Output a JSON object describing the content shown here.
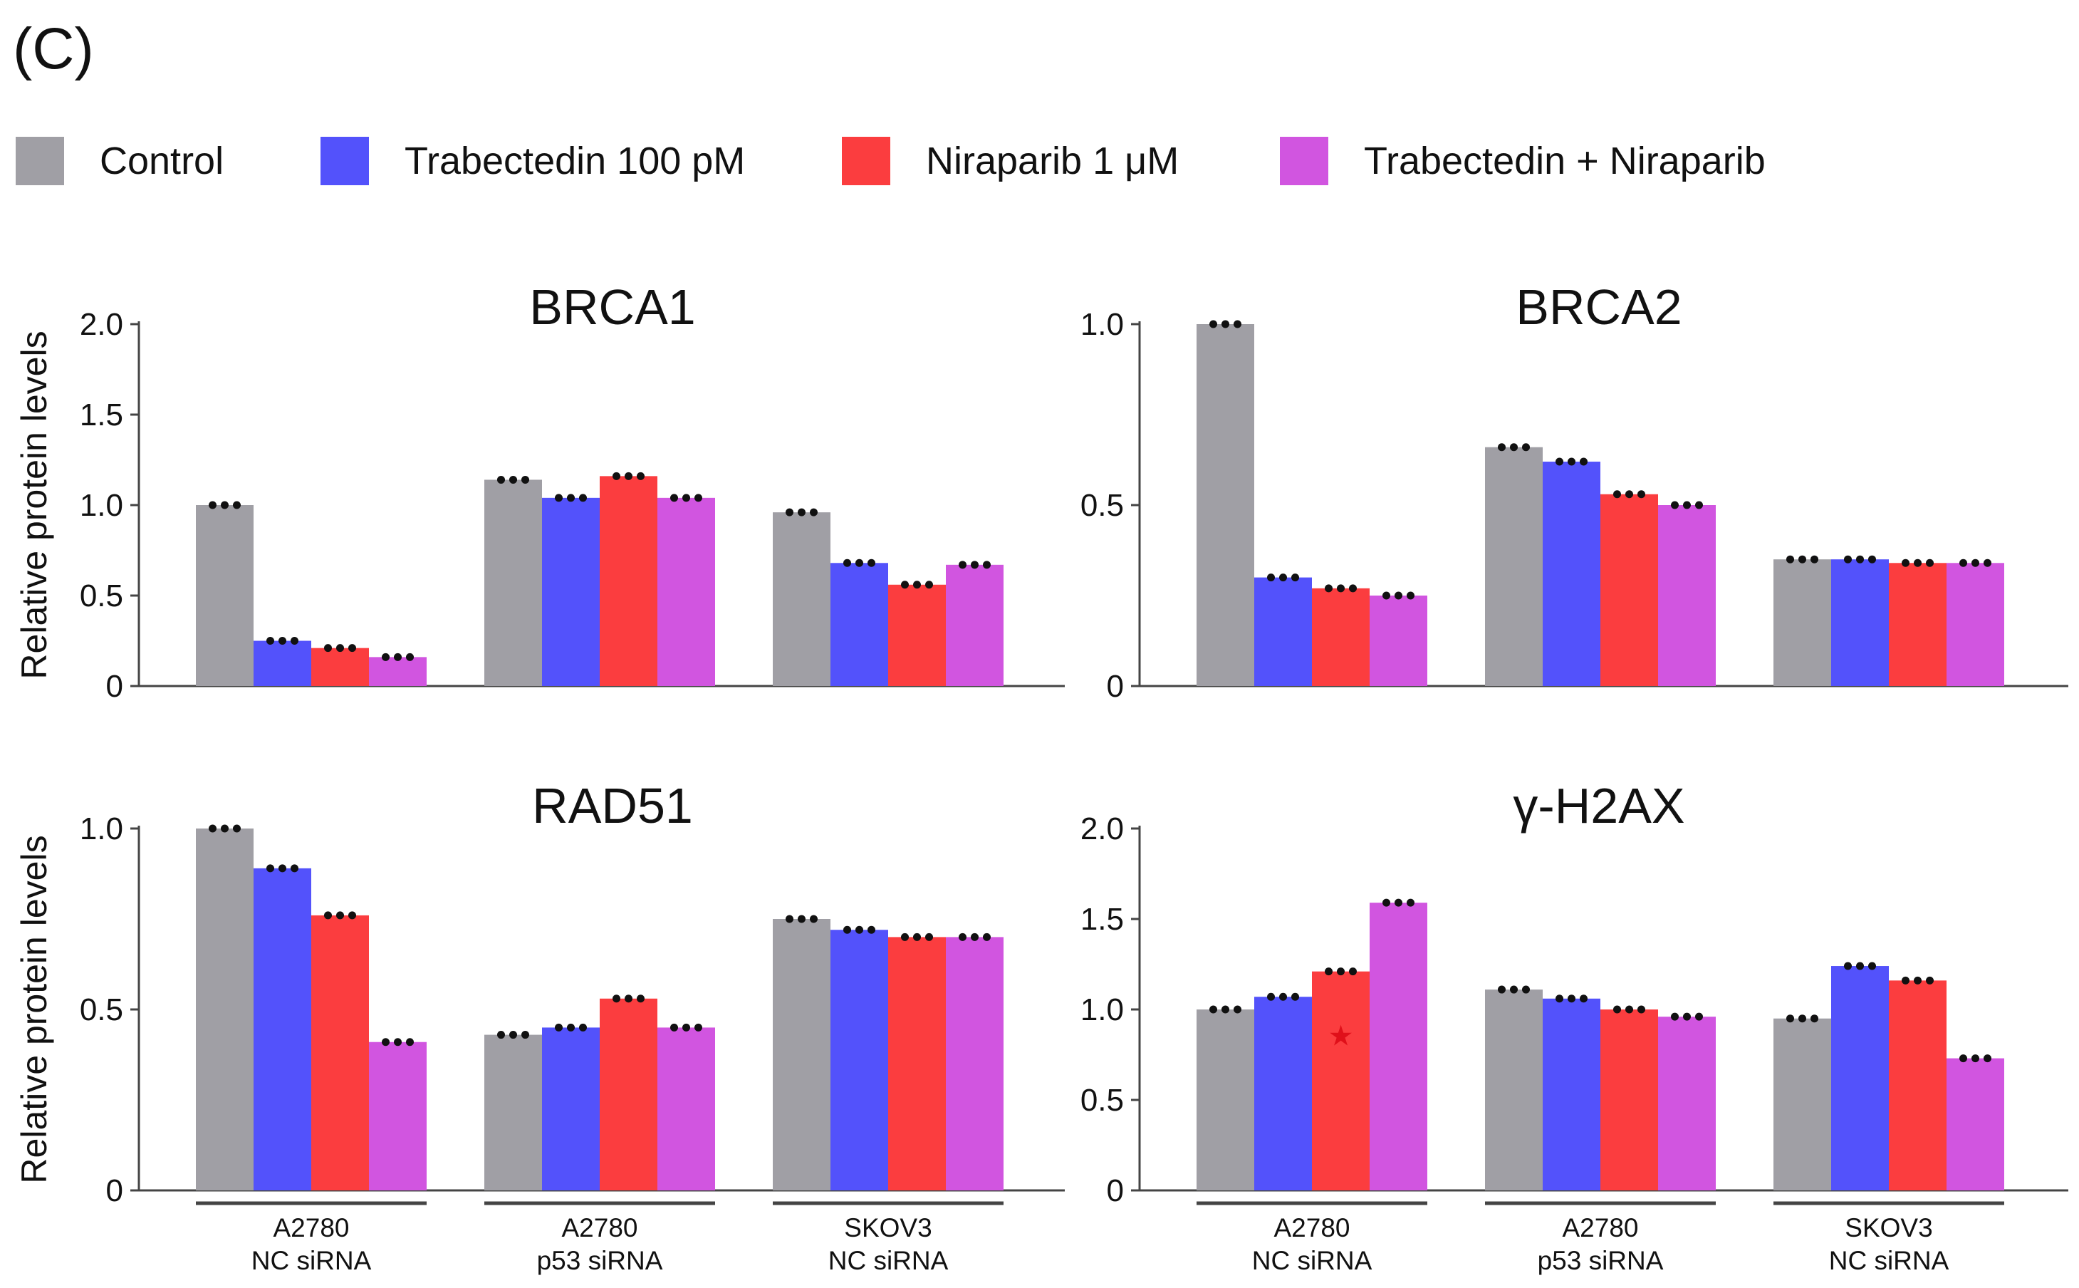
{
  "panel_label": "(C)",
  "legend": [
    {
      "label": "Control",
      "color": "#a09fa5"
    },
    {
      "label": "Trabectedin 100 pM",
      "color": "#5352fb"
    },
    {
      "label": "Niraparib 1 μM",
      "color": "#fb3d3f"
    },
    {
      "label": "Trabectedin + Niraparib",
      "color": "#d155e0"
    }
  ],
  "group_labels": [
    [
      "A2780",
      "NC siRNA"
    ],
    [
      "A2780",
      "p53 siRNA"
    ],
    [
      "SKOV3",
      "NC siRNA"
    ]
  ],
  "chart_data": [
    {
      "type": "bar",
      "title": "BRCA1",
      "ylabel": "Relative protein levels",
      "ylim": [
        0,
        2.0
      ],
      "yticks": [
        "0",
        "0.5",
        "1.0",
        "1.5",
        "2.0"
      ],
      "series": [
        {
          "name": "Control",
          "values": [
            1.0,
            1.14,
            0.96
          ]
        },
        {
          "name": "Trabectedin 100 pM",
          "values": [
            0.25,
            1.04,
            0.68
          ]
        },
        {
          "name": "Niraparib 1 μM",
          "values": [
            0.21,
            1.16,
            0.56
          ]
        },
        {
          "name": "Trabectedin + Niraparib",
          "values": [
            0.16,
            1.04,
            0.67
          ]
        }
      ]
    },
    {
      "type": "bar",
      "title": "BRCA2",
      "ylabel": "",
      "ylim": [
        0,
        1.0
      ],
      "yticks": [
        "0",
        "0.5",
        "1.0"
      ],
      "series": [
        {
          "name": "Control",
          "values": [
            1.0,
            0.66,
            0.35
          ]
        },
        {
          "name": "Trabectedin 100 pM",
          "values": [
            0.3,
            0.62,
            0.35
          ]
        },
        {
          "name": "Niraparib 1 μM",
          "values": [
            0.27,
            0.53,
            0.34
          ]
        },
        {
          "name": "Trabectedin + Niraparib",
          "values": [
            0.25,
            0.5,
            0.34
          ]
        }
      ]
    },
    {
      "type": "bar",
      "title": "RAD51",
      "ylabel": "Relative protein levels",
      "ylim": [
        0,
        1.0
      ],
      "yticks": [
        "0",
        "0.5",
        "1.0"
      ],
      "series": [
        {
          "name": "Control",
          "values": [
            1.0,
            0.43,
            0.75
          ]
        },
        {
          "name": "Trabectedin 100 pM",
          "values": [
            0.89,
            0.45,
            0.72
          ]
        },
        {
          "name": "Niraparib 1 μM",
          "values": [
            0.76,
            0.53,
            0.7
          ]
        },
        {
          "name": "Trabectedin + Niraparib",
          "values": [
            0.41,
            0.45,
            0.7
          ]
        }
      ]
    },
    {
      "type": "bar",
      "title": "γ-H2AX",
      "ylabel": "",
      "ylim": [
        0,
        2.0
      ],
      "yticks": [
        "0",
        "0.5",
        "1.0",
        "1.5",
        "2.0"
      ],
      "series": [
        {
          "name": "Control",
          "values": [
            1.0,
            1.11,
            0.95
          ]
        },
        {
          "name": "Trabectedin 100 pM",
          "values": [
            1.07,
            1.06,
            1.24
          ]
        },
        {
          "name": "Niraparib 1 μM",
          "values": [
            1.21,
            1.0,
            1.16
          ]
        },
        {
          "name": "Trabectedin + Niraparib",
          "values": [
            1.59,
            0.96,
            0.73
          ]
        }
      ],
      "annotations": [
        {
          "text": "*",
          "group": 0,
          "series": 2,
          "color": "#fb3d3f"
        }
      ]
    }
  ]
}
